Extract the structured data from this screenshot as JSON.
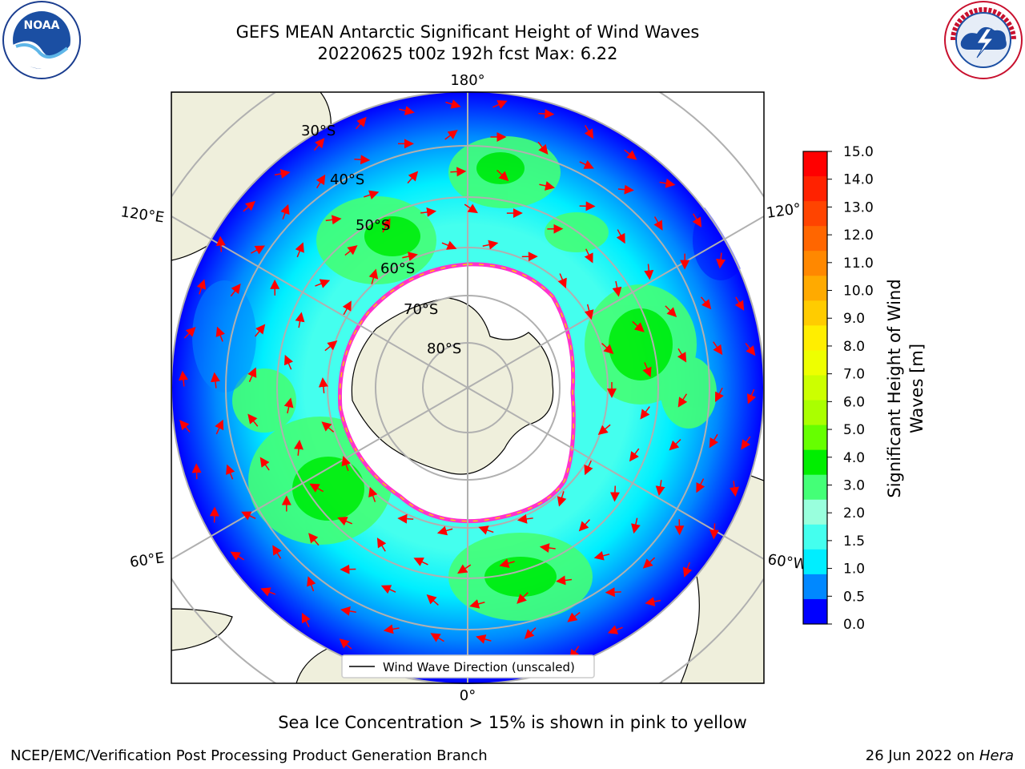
{
  "title_line1": "GEFS MEAN Antarctic Significant Height of Wind Waves",
  "title_line2": "20220625 t00z 192h fcst   Max: 6.22",
  "map_labels": {
    "lon_top": "180°",
    "lon_bottom": "0°",
    "lon_left_upper": "120°E",
    "lon_left_lower": "60°E",
    "lon_right_upper": "120°",
    "lon_right_lower": "60°W",
    "lat_30": "30°S",
    "lat_40": "40°S",
    "lat_50": "50°S",
    "lat_60": "60°S",
    "lat_70": "70°S",
    "lat_80": "80°S"
  },
  "legend_label": "Wind Wave Direction (unscaled)",
  "colorbar": {
    "label_line1": "Significant Height of Wind",
    "label_line2": "Waves [m]",
    "ticks": [
      "15.0",
      "14.0",
      "13.0",
      "12.0",
      "11.0",
      "10.0",
      "9.0",
      "8.0",
      "7.0",
      "6.0",
      "5.0",
      "4.0",
      "3.0",
      "2.0",
      "1.5",
      "1.0",
      "0.5",
      "0.0"
    ],
    "colors_top_to_bottom": [
      "#ff0000",
      "#ff2200",
      "#ff4400",
      "#ff6600",
      "#ff8800",
      "#ffaa00",
      "#ffcc00",
      "#ffee00",
      "#eeff00",
      "#ccff00",
      "#aaff00",
      "#66ff00",
      "#00ee00",
      "#44ff77",
      "#99ffdd",
      "#44ffee",
      "#00eeff",
      "#0088ff",
      "#0000ff"
    ]
  },
  "sea_ice_note": "Sea Ice Concentration > 15% is shown in pink to yellow",
  "footer_left": "NCEP/EMC/Verification Post Processing Product Generation Branch",
  "footer_date": "26 Jun 2022 on ",
  "footer_host": "Hera",
  "logo_left": "NOAA",
  "logo_left_ring": "NATIONAL OCEANIC AND ATMOSPHERIC ADMINISTRATION · U.S. DEPARTMENT OF COMMERCE",
  "logo_right_ring": "NATIONAL WEATHER SERVICE"
}
